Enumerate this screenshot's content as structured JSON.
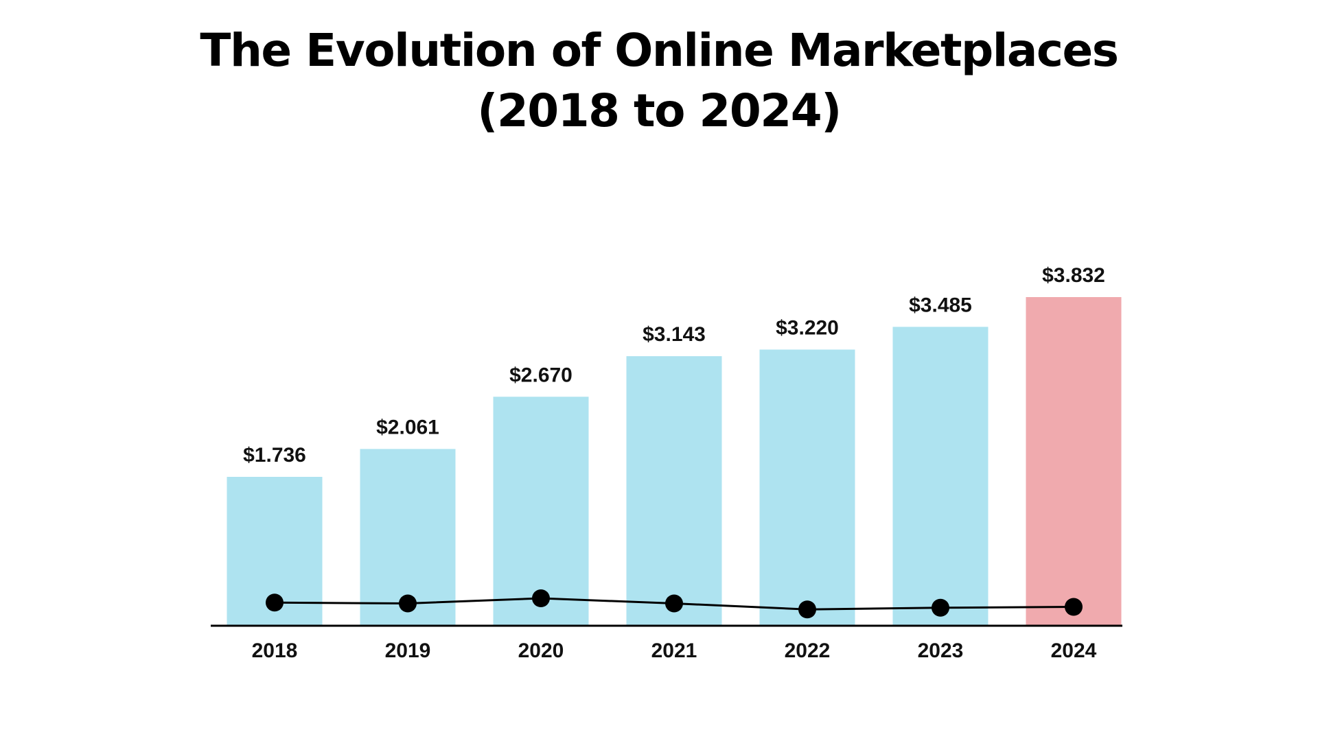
{
  "chart_data": {
    "type": "bar",
    "title": "The Evolution of Online Marketplaces",
    "subtitle": "(2018 to 2024)",
    "xlabel": "",
    "ylabel": "",
    "categories": [
      "2018",
      "2019",
      "2020",
      "2021",
      "2022",
      "2023",
      "2024"
    ],
    "series": [
      {
        "type": "bar",
        "values": [
          1.736,
          2.061,
          2.67,
          3.143,
          3.22,
          3.485,
          3.832
        ],
        "labels": [
          "$1.736",
          "$2.061",
          "$2.670",
          "$3.143",
          "$3.220",
          "$3.485",
          "$3.832"
        ],
        "colors": [
          "#aee3f0",
          "#aee3f0",
          "#aee3f0",
          "#aee3f0",
          "#aee3f0",
          "#aee3f0",
          "#f0aaae"
        ]
      },
      {
        "type": "line",
        "values": [
          0.27,
          0.26,
          0.32,
          0.26,
          0.19,
          0.21,
          0.22
        ],
        "color": "#000000"
      }
    ],
    "ylim": [
      0,
      4.0
    ],
    "grid": false,
    "legend": "none"
  }
}
